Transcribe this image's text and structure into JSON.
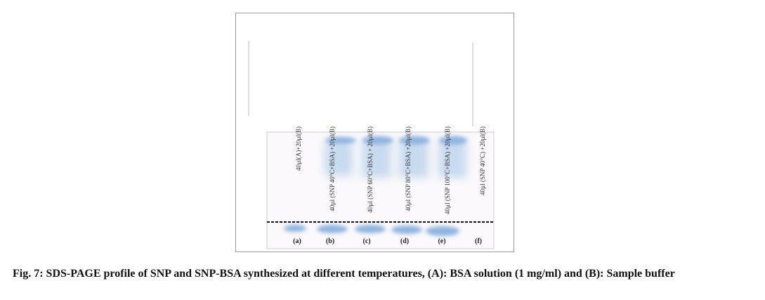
{
  "figure": {
    "lane_labels": [
      "40µl(A)+20µl(B)",
      "40µl (SNP 40°C+BSA) +20µl(B)",
      "40µl (SNP 60°C+BSA) + 20µl(B)",
      "40µl (SNP 80°C+BSA) +20µl(B)",
      "40µl (SNP 100°C+BSA) +20µl(B)",
      "40µl (SNP 40°C) +20µl(B)"
    ],
    "lane_letters": [
      "(a)",
      "(b)",
      "(c)",
      "(d)",
      "(e)",
      "(f)"
    ],
    "caption_title": "Fig. 7: SDS-PAGE profile of SNP and SNP-BSA synthesized at different temperatures, (A): BSA solution (1 mg/ml) and (B): Sample buffer"
  }
}
